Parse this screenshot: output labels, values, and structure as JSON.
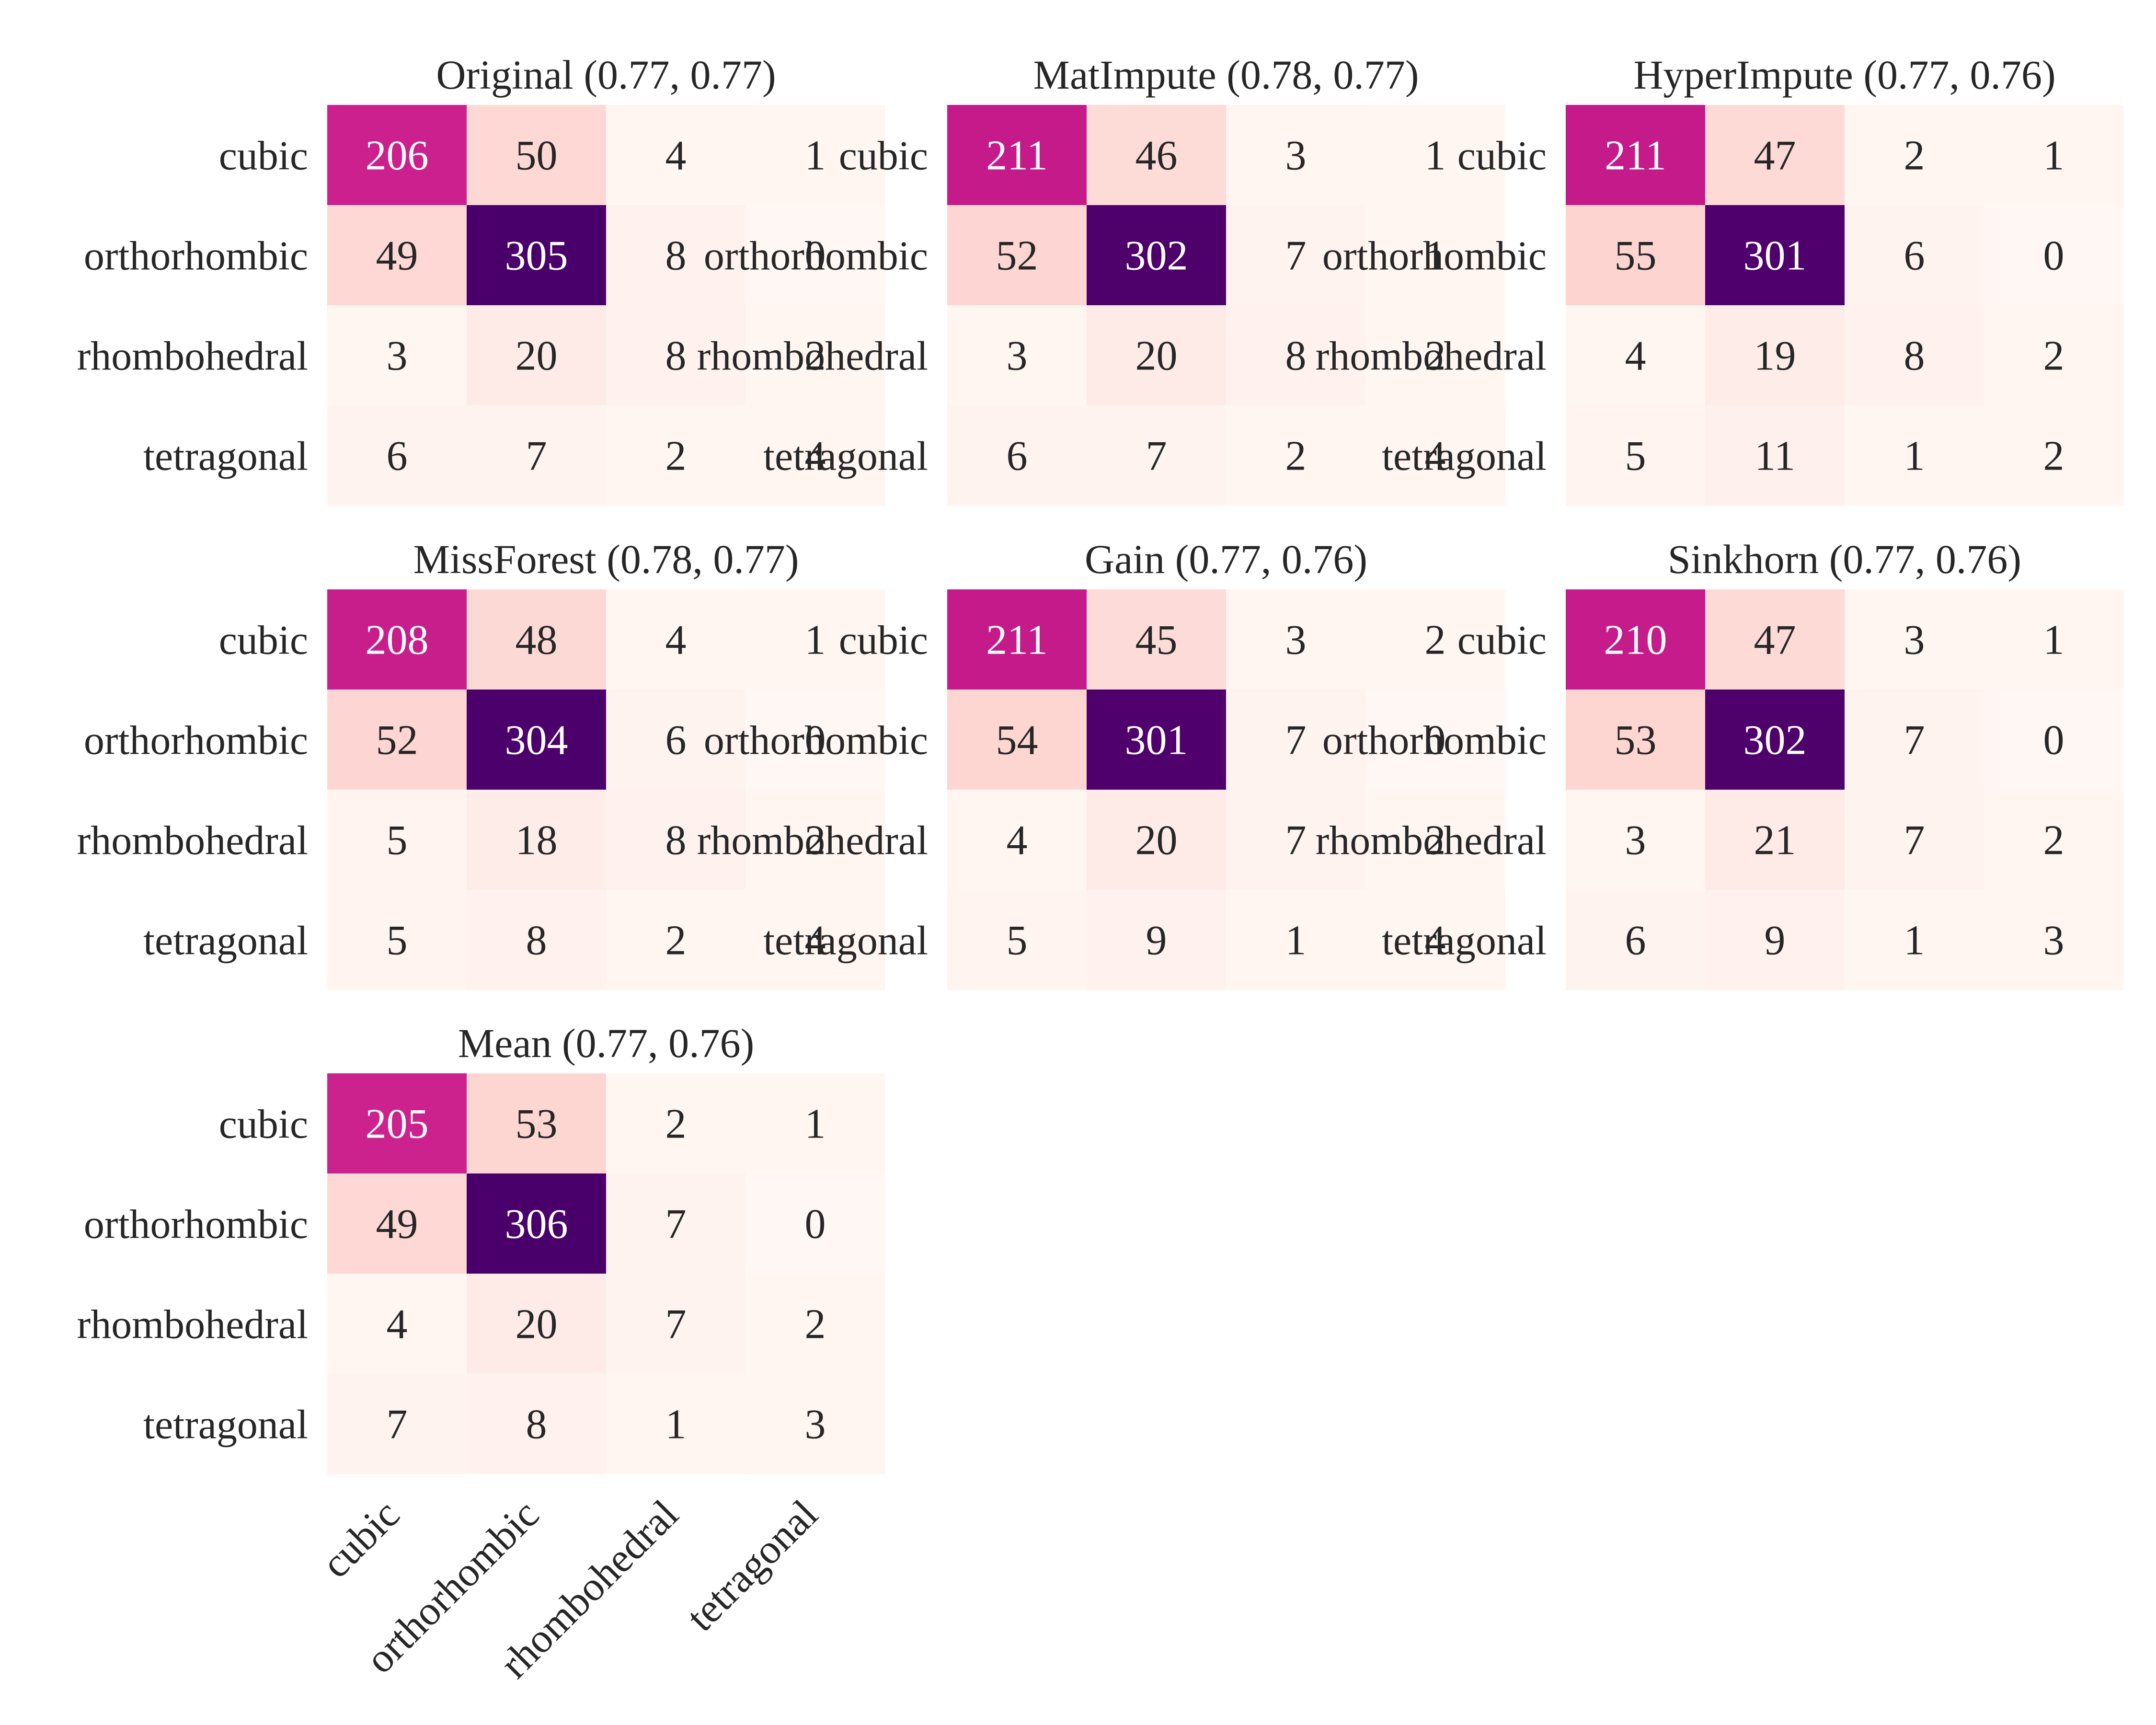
{
  "chart_data": {
    "type": "heatmap",
    "row_labels": [
      "cubic",
      "orthorhombic",
      "rhombohedral",
      "tetragonal"
    ],
    "col_labels": [
      "cubic",
      "orthorhombic",
      "rhombohedral",
      "tetragonal"
    ],
    "colormap": "RdPu",
    "color_range": [
      0,
      306
    ],
    "panels": [
      {
        "title": "Original (0.77, 0.77)",
        "matrix": [
          [
            206,
            50,
            4,
            1
          ],
          [
            49,
            305,
            8,
            0
          ],
          [
            3,
            20,
            8,
            2
          ],
          [
            6,
            7,
            2,
            4
          ]
        ]
      },
      {
        "title": "MatImpute (0.78, 0.77)",
        "matrix": [
          [
            211,
            46,
            3,
            1
          ],
          [
            52,
            302,
            7,
            1
          ],
          [
            3,
            20,
            8,
            2
          ],
          [
            6,
            7,
            2,
            4
          ]
        ]
      },
      {
        "title": "HyperImpute (0.77, 0.76)",
        "matrix": [
          [
            211,
            47,
            2,
            1
          ],
          [
            55,
            301,
            6,
            0
          ],
          [
            4,
            19,
            8,
            2
          ],
          [
            5,
            11,
            1,
            2
          ]
        ]
      },
      {
        "title": "MissForest (0.78, 0.77)",
        "matrix": [
          [
            208,
            48,
            4,
            1
          ],
          [
            52,
            304,
            6,
            0
          ],
          [
            5,
            18,
            8,
            2
          ],
          [
            5,
            8,
            2,
            4
          ]
        ]
      },
      {
        "title": "Gain (0.77, 0.76)",
        "matrix": [
          [
            211,
            45,
            3,
            2
          ],
          [
            54,
            301,
            7,
            0
          ],
          [
            4,
            20,
            7,
            2
          ],
          [
            5,
            9,
            1,
            4
          ]
        ]
      },
      {
        "title": "Sinkhorn (0.77, 0.76)",
        "matrix": [
          [
            210,
            47,
            3,
            1
          ],
          [
            53,
            302,
            7,
            0
          ],
          [
            3,
            21,
            7,
            2
          ],
          [
            6,
            9,
            1,
            3
          ]
        ]
      },
      {
        "title": "Mean (0.77, 0.76)",
        "matrix": [
          [
            205,
            53,
            2,
            1
          ],
          [
            49,
            306,
            7,
            0
          ],
          [
            4,
            20,
            7,
            2
          ],
          [
            7,
            8,
            1,
            3
          ]
        ]
      }
    ]
  }
}
